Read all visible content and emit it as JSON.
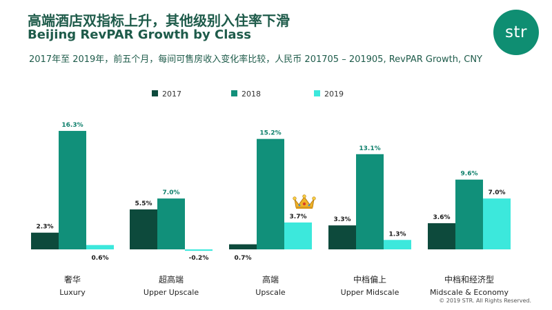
{
  "title_zh": "高端酒店双指标上升，其他级别入住率下滑",
  "title_en": "Beijing RevPAR Growth by Class",
  "subtitle": "2017年至 2019年，前五个月，每间可售房收入变化率比较，人民币 201705 – 201905, RevPAR Growth, CNY",
  "logo_text": "str",
  "copyright": "© 2019 STR. All Rights Reserved.",
  "colors": {
    "title": "#1e5b4a",
    "s2017": "#0d4a3c",
    "s2018": "#11907a",
    "s2019": "#3ce8dc",
    "logo": "#0f8e72"
  },
  "chart_data": {
    "type": "bar",
    "categories": [
      {
        "zh": "奢华",
        "en": "Luxury"
      },
      {
        "zh": "超高端",
        "en": "Upper Upscale"
      },
      {
        "zh": "高端",
        "en": "Upscale"
      },
      {
        "zh": "中档偏上",
        "en": "Upper Midscale"
      },
      {
        "zh": "中档和经济型",
        "en": "Midscale & Economy"
      }
    ],
    "series": [
      {
        "name": "2017",
        "values": [
          2.3,
          5.5,
          0.7,
          3.3,
          3.6
        ],
        "labels": [
          "2.3%",
          "5.5%",
          "0.7%",
          "3.3%",
          "3.6%"
        ]
      },
      {
        "name": "2018",
        "values": [
          16.3,
          7.0,
          15.2,
          13.1,
          9.6
        ],
        "labels": [
          "16.3%",
          "7.0%",
          "15.2%",
          "13.1%",
          "9.6%"
        ]
      },
      {
        "name": "2019",
        "values": [
          0.6,
          -0.2,
          3.7,
          1.3,
          7.0
        ],
        "labels": [
          "0.6%",
          "-0.2%",
          "3.7%",
          "1.3%",
          "7.0%"
        ]
      }
    ],
    "legend_position": "top-center",
    "grid": false,
    "annotation": "crown-icon above Upscale 2019"
  }
}
